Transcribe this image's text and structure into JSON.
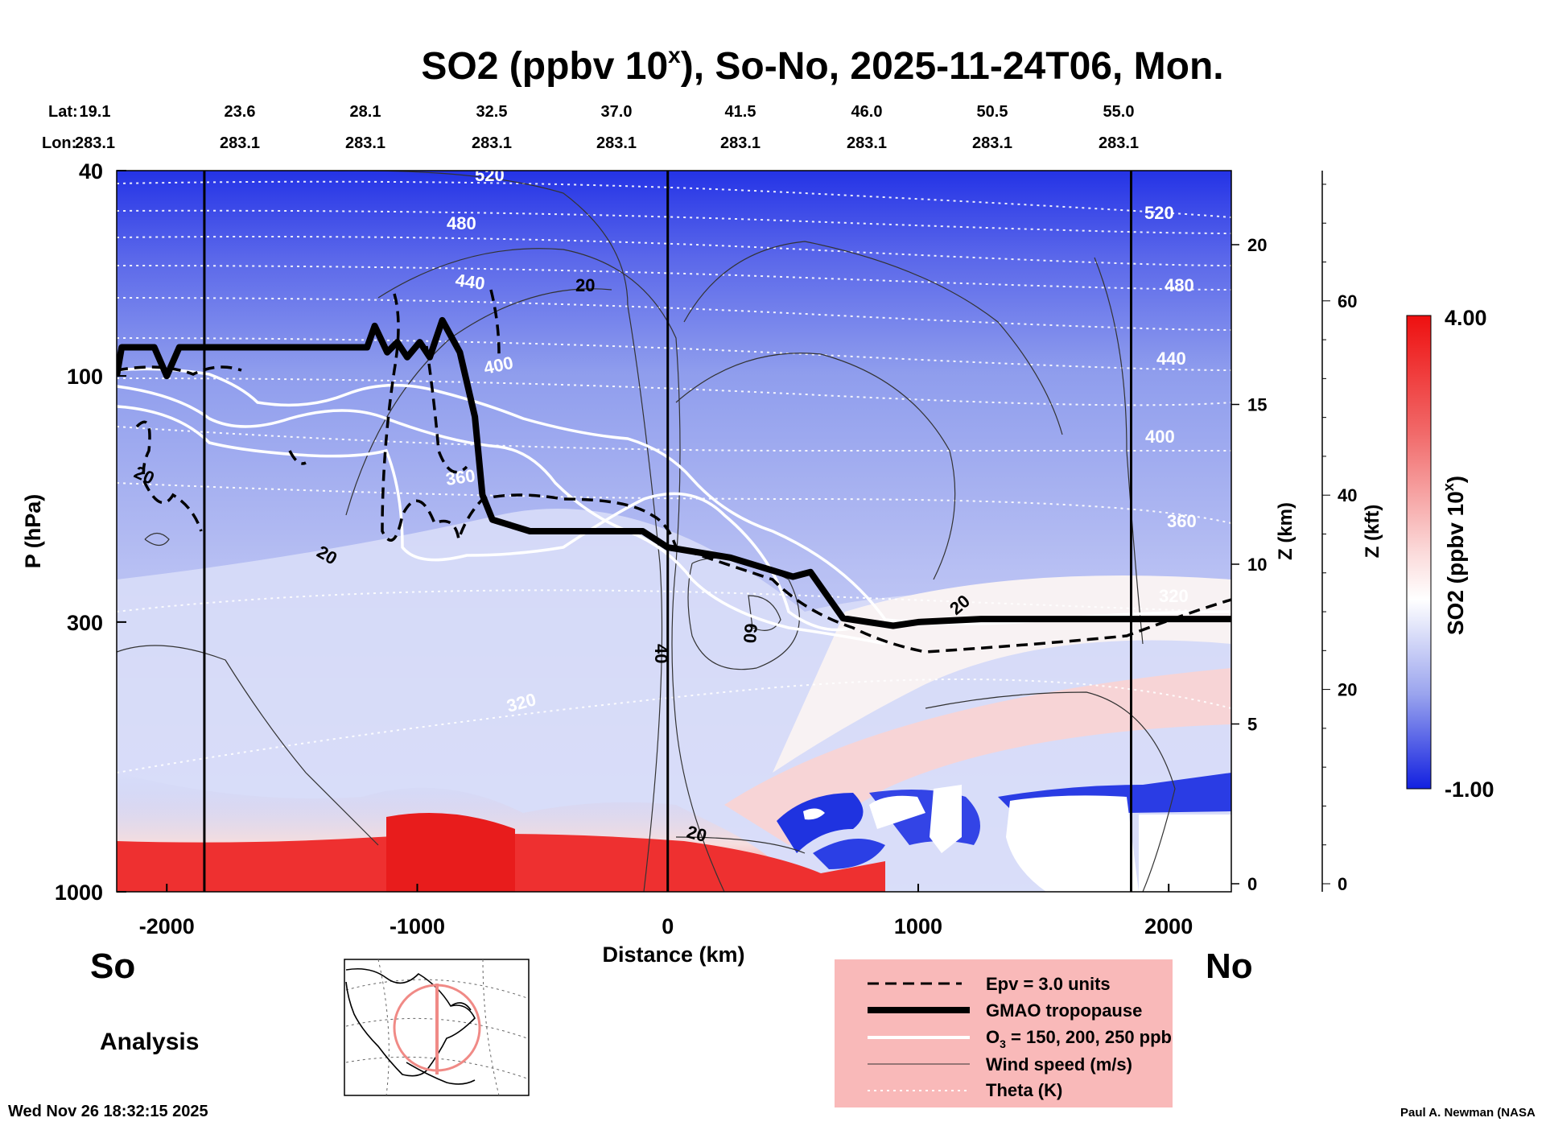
{
  "chart_data": {
    "type": "heatmap",
    "title_prefix": "SO2 (ppbv 10",
    "title_sup": "x",
    "title_suffix": "), So-No, 2025-11-24T06, Mon.",
    "lat_label": "Lat:",
    "lon_label": "Lon:",
    "lats": [
      "19.1",
      "23.6",
      "28.1",
      "32.5",
      "37.0",
      "41.5",
      "46.0",
      "50.5",
      "55.0"
    ],
    "lons": [
      "283.1",
      "283.1",
      "283.1",
      "283.1",
      "283.1",
      "283.1",
      "283.1",
      "283.1",
      "283.1"
    ],
    "xlabel": "Distance (km)",
    "xticks": [
      "-2000",
      "-1000",
      "0",
      "1000",
      "2000"
    ],
    "xlim": [
      -2200,
      2250
    ],
    "ylabel": "P (hPa)",
    "yticks": [
      "40",
      "100",
      "300",
      "1000"
    ],
    "zkm_label": "Z (km)",
    "zkm_ticks": [
      "0",
      "5",
      "10",
      "15",
      "20"
    ],
    "zkft_label": "Z (kft)",
    "zkft_ticks": [
      "0",
      "20",
      "40",
      "60"
    ],
    "vertical_lines_km": [
      -1850,
      0,
      1850
    ],
    "colorbar": {
      "label_prefix": "SO2 (ppbv 10",
      "label_sup": "x",
      "label_suffix": ")",
      "max": "4.00",
      "min": "-1.00"
    },
    "theta_labels": [
      "520",
      "480",
      "440",
      "400",
      "360",
      "320",
      "520",
      "480",
      "440",
      "400",
      "360",
      "320"
    ],
    "wind_labels": [
      "20",
      "20",
      "20",
      "20",
      "20",
      "40",
      "60"
    ],
    "tropopause": [
      {
        "x": -2200,
        "p": 100
      },
      {
        "x": -2180,
        "p": 88
      },
      {
        "x": -2050,
        "p": 88
      },
      {
        "x": -2000,
        "p": 100
      },
      {
        "x": -1950,
        "p": 88
      },
      {
        "x": -1200,
        "p": 88
      },
      {
        "x": -1170,
        "p": 80
      },
      {
        "x": -1120,
        "p": 90
      },
      {
        "x": -1080,
        "p": 86
      },
      {
        "x": -1040,
        "p": 92
      },
      {
        "x": -990,
        "p": 86
      },
      {
        "x": -950,
        "p": 92
      },
      {
        "x": -900,
        "p": 78
      },
      {
        "x": -830,
        "p": 90
      },
      {
        "x": -770,
        "p": 120
      },
      {
        "x": -740,
        "p": 170
      },
      {
        "x": -700,
        "p": 190
      },
      {
        "x": -550,
        "p": 200
      },
      {
        "x": -100,
        "p": 200
      },
      {
        "x": 0,
        "p": 215
      },
      {
        "x": 250,
        "p": 225
      },
      {
        "x": 500,
        "p": 245
      },
      {
        "x": 570,
        "p": 240
      },
      {
        "x": 700,
        "p": 295
      },
      {
        "x": 900,
        "p": 305
      },
      {
        "x": 1000,
        "p": 300
      },
      {
        "x": 1250,
        "p": 296
      },
      {
        "x": 2250,
        "p": 296
      }
    ],
    "legend": [
      {
        "style": "dashed",
        "label": "Epv = 3.0 units"
      },
      {
        "style": "thick",
        "label": "GMAO tropopause"
      },
      {
        "style": "white",
        "label_main": "O",
        "label_sub": "3",
        "label_rest": " = 150, 200, 250 ppb"
      },
      {
        "style": "thin",
        "label": "Wind speed (m/s)"
      },
      {
        "style": "dotted",
        "label": "Theta (K)"
      }
    ],
    "left_label": "So",
    "right_label": "No",
    "analysis_label": "Analysis",
    "timestamp": "Wed Nov 26 18:32:15 2025",
    "credit": "Paul A. Newman (NASA"
  },
  "colors": {
    "deep_blue": "#2433e6",
    "mid_blue": "#8f9ded",
    "light_blue": "#c9cff5",
    "neutral": "#eef0fb",
    "pink": "#f6c7c9",
    "red": "#ee2424",
    "legend_bg": "#f9b9b9"
  }
}
